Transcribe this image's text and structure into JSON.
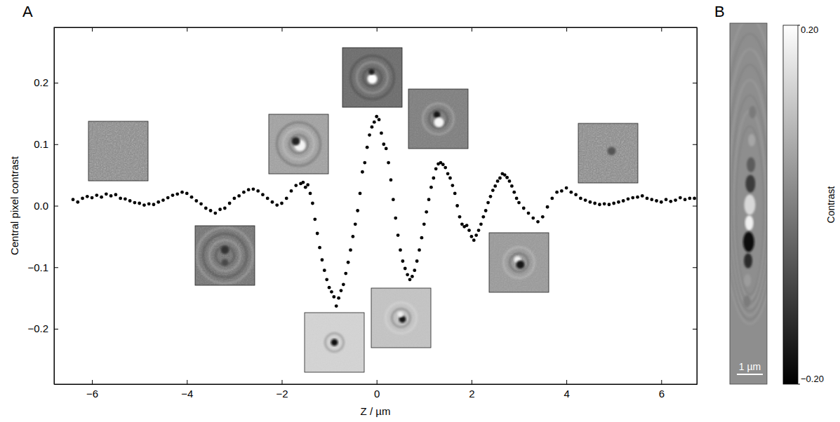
{
  "chart_data": [
    {
      "type": "scatter",
      "panel": "A",
      "x_label": "Z / µm",
      "y_label": "Central pixel contrast",
      "color": "#000000",
      "marker": "circle",
      "grid": false,
      "xlim": [
        -6.8,
        6.75
      ],
      "ylim": [
        -0.29,
        0.29
      ],
      "xticks": [
        {
          "value": -6,
          "label": "−6"
        },
        {
          "value": -4,
          "label": "−4"
        },
        {
          "value": -2,
          "label": "−2"
        },
        0,
        2,
        4,
        6
      ],
      "yticks": [
        {
          "value": -0.2,
          "label": "−0.2"
        },
        {
          "value": -0.1,
          "label": "−0.1"
        },
        {
          "value": 0,
          "label": "0.0"
        },
        0.1,
        0.2
      ],
      "x": [
        -6.4,
        -6.3,
        -6.2,
        -6.1,
        -6.0,
        -5.9,
        -5.8,
        -5.7,
        -5.6,
        -5.5,
        -5.4,
        -5.3,
        -5.2,
        -5.1,
        -5.0,
        -4.9,
        -4.8,
        -4.7,
        -4.6,
        -4.5,
        -4.4,
        -4.3,
        -4.2,
        -4.1,
        -4.0,
        -3.9,
        -3.8,
        -3.7,
        -3.6,
        -3.5,
        -3.4,
        -3.3,
        -3.2,
        -3.1,
        -3.0,
        -2.9,
        -2.8,
        -2.7,
        -2.6,
        -2.5,
        -2.4,
        -2.3,
        -2.2,
        -2.1,
        -2.0,
        -1.9,
        -1.8,
        -1.7,
        -1.6,
        -1.55,
        -1.5,
        -1.45,
        -1.4,
        -1.35,
        -1.3,
        -1.25,
        -1.2,
        -1.15,
        -1.1,
        -1.05,
        -1.0,
        -0.95,
        -0.9,
        -0.85,
        -0.8,
        -0.75,
        -0.7,
        -0.65,
        -0.6,
        -0.55,
        -0.5,
        -0.45,
        -0.4,
        -0.35,
        -0.3,
        -0.25,
        -0.2,
        -0.15,
        -0.1,
        -0.05,
        0.0,
        0.05,
        0.1,
        0.15,
        0.2,
        0.25,
        0.3,
        0.35,
        0.4,
        0.45,
        0.5,
        0.55,
        0.6,
        0.65,
        0.7,
        0.75,
        0.8,
        0.85,
        0.9,
        0.95,
        1.0,
        1.05,
        1.1,
        1.15,
        1.2,
        1.25,
        1.3,
        1.35,
        1.4,
        1.45,
        1.5,
        1.55,
        1.6,
        1.65,
        1.7,
        1.75,
        1.8,
        1.85,
        1.9,
        1.95,
        2.0,
        2.05,
        2.1,
        2.15,
        2.2,
        2.25,
        2.3,
        2.35,
        2.4,
        2.45,
        2.5,
        2.55,
        2.6,
        2.65,
        2.7,
        2.75,
        2.8,
        2.85,
        2.9,
        2.95,
        3.0,
        3.1,
        3.2,
        3.3,
        3.4,
        3.5,
        3.6,
        3.7,
        3.8,
        3.9,
        4.0,
        4.1,
        4.2,
        4.3,
        4.4,
        4.5,
        4.6,
        4.7,
        4.8,
        4.9,
        5.0,
        5.1,
        5.2,
        5.3,
        5.4,
        5.5,
        5.6,
        5.7,
        5.8,
        5.9,
        6.0,
        6.1,
        6.2,
        6.3,
        6.4,
        6.5,
        6.6,
        6.7
      ],
      "values": [
        0.01,
        0.006,
        0.012,
        0.015,
        0.013,
        0.017,
        0.014,
        0.019,
        0.016,
        0.018,
        0.012,
        0.011,
        0.008,
        0.005,
        0.004,
        0.001,
        0.003,
        0.002,
        0.006,
        0.009,
        0.013,
        0.017,
        0.019,
        0.022,
        0.02,
        0.014,
        0.008,
        0.003,
        -0.004,
        -0.008,
        -0.012,
        -0.006,
        -0.004,
        0.004,
        0.012,
        0.016,
        0.022,
        0.026,
        0.027,
        0.024,
        0.018,
        0.012,
        0.006,
        0.001,
        0.004,
        0.012,
        0.024,
        0.033,
        0.036,
        0.038,
        0.03,
        0.034,
        0.02,
        0.004,
        -0.022,
        -0.045,
        -0.068,
        -0.088,
        -0.105,
        -0.12,
        -0.133,
        -0.14,
        -0.148,
        -0.163,
        -0.15,
        -0.138,
        -0.128,
        -0.11,
        -0.092,
        -0.072,
        -0.05,
        -0.03,
        -0.008,
        0.02,
        0.055,
        0.07,
        0.095,
        0.115,
        0.128,
        0.136,
        0.145,
        0.14,
        0.118,
        0.1,
        0.093,
        0.07,
        0.042,
        0.01,
        -0.02,
        -0.048,
        -0.072,
        -0.09,
        -0.102,
        -0.112,
        -0.12,
        -0.115,
        -0.105,
        -0.09,
        -0.072,
        -0.052,
        -0.03,
        -0.01,
        0.01,
        0.03,
        0.045,
        0.06,
        0.068,
        0.07,
        0.067,
        0.062,
        0.052,
        0.045,
        0.033,
        0.02,
        0.0,
        -0.018,
        -0.03,
        -0.034,
        -0.032,
        -0.04,
        -0.05,
        -0.056,
        -0.048,
        -0.04,
        -0.03,
        -0.018,
        -0.008,
        0.005,
        0.015,
        0.025,
        0.032,
        0.04,
        0.045,
        0.052,
        0.05,
        0.046,
        0.04,
        0.032,
        0.022,
        0.012,
        0.005,
        -0.004,
        -0.012,
        -0.02,
        -0.026,
        -0.018,
        -0.002,
        0.012,
        0.022,
        0.024,
        0.029,
        0.022,
        0.018,
        0.012,
        0.009,
        0.006,
        0.004,
        0.002,
        0.003,
        0.002,
        0.004,
        0.006,
        0.008,
        0.011,
        0.013,
        0.014,
        0.016,
        0.012,
        0.01,
        0.008,
        0.006,
        0.01,
        0.007,
        0.009,
        0.013,
        0.01,
        0.012,
        0.012
      ]
    },
    {
      "type": "image",
      "panel": "B",
      "scale_bar": "1 µm",
      "colorbar": {
        "label": "Contrast",
        "range": [
          -0.2,
          0.2
        ],
        "ticks": [
          {
            "value": -0.2,
            "label": "−0.20"
          },
          {
            "value": 0.2,
            "label": "0.20"
          }
        ]
      }
    }
  ]
}
